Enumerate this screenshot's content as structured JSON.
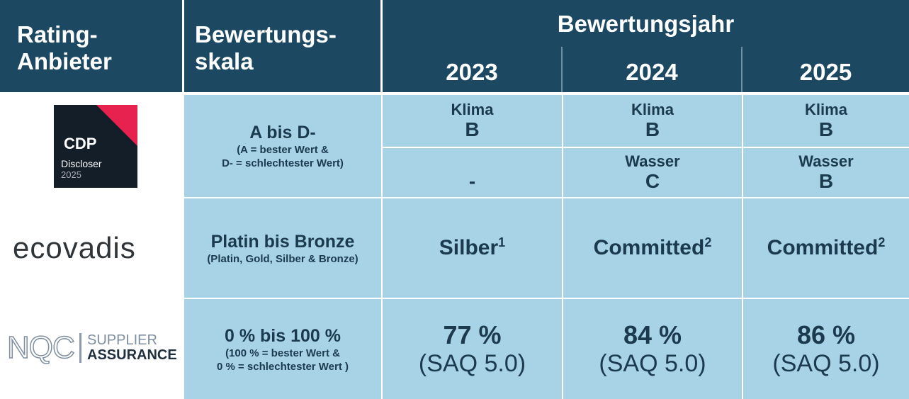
{
  "header": {
    "provider": [
      "Rating-",
      "Anbieter"
    ],
    "scale": [
      "Bewertungs-",
      "skala"
    ],
    "year_group": "Bewertungsjahr",
    "years": [
      "2023",
      "2024",
      "2025"
    ]
  },
  "rows": [
    {
      "logo": {
        "brand": "CDP",
        "line1": "Discloser",
        "line2": "2025"
      },
      "scale": {
        "title": "A bis D-",
        "note": [
          "(A = bester Wert &",
          "D- = schlechtester Wert)"
        ]
      },
      "subrows": [
        [
          {
            "topic": "Klima",
            "grade": "B"
          },
          {
            "topic": "Klima",
            "grade": "B"
          },
          {
            "topic": "Klima",
            "grade": "B"
          }
        ],
        [
          {
            "grade": "-"
          },
          {
            "topic": "Wasser",
            "grade": "C"
          },
          {
            "topic": "Wasser",
            "grade": "B"
          }
        ]
      ]
    },
    {
      "logo": {
        "brand": "ecovadis"
      },
      "scale": {
        "title": "Platin bis Bronze",
        "note": [
          "(Platin, Gold, Silber & Bronze)"
        ]
      },
      "cells": [
        {
          "text": "Silber",
          "footnote": "1"
        },
        {
          "text": "Committed",
          "footnote": "2"
        },
        {
          "text": "Committed",
          "footnote": "2"
        }
      ]
    },
    {
      "logo": {
        "brand": "NQC",
        "line1": "SUPPLIER",
        "line2": "ASSURANCE"
      },
      "scale": {
        "title": "0 % bis 100 %",
        "note": [
          "(100 % = bester Wert &",
          "0 % = schlechtester Wert )"
        ]
      },
      "cells": [
        {
          "text": "77 %",
          "note": "(SAQ 5.0)"
        },
        {
          "text": "84 %",
          "note": "(SAQ 5.0)"
        },
        {
          "text": "86 %",
          "note": "(SAQ 5.0)"
        }
      ]
    }
  ]
}
